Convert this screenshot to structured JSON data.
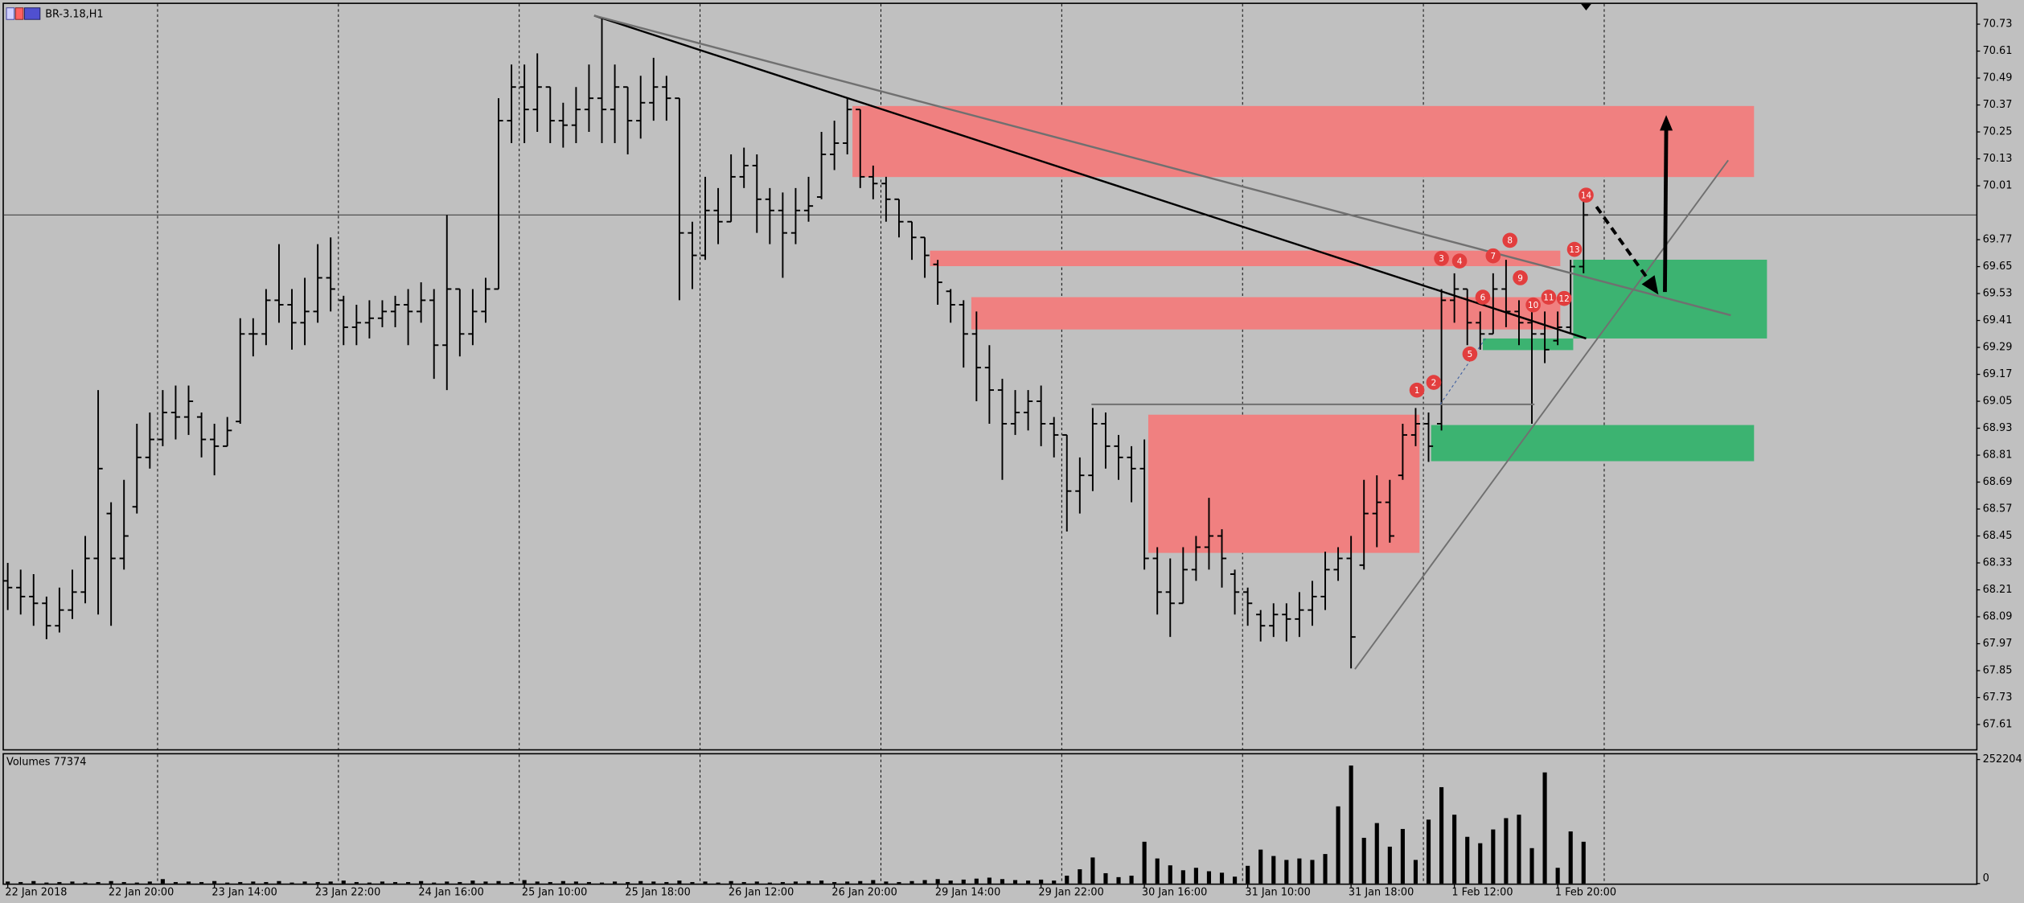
{
  "chart_data": [
    {
      "type": "ohlc",
      "title": "BR-3.18,H1",
      "color": "#000000",
      "categories": [
        "22 Jan 2018",
        null,
        null,
        null,
        null,
        null,
        null,
        null,
        "22 Jan 20:00",
        null,
        null,
        null,
        null,
        null,
        null,
        null,
        "23 Jan 14:00",
        null,
        null,
        null,
        null,
        null,
        null,
        null,
        "23 Jan 22:00",
        null,
        null,
        null,
        null,
        null,
        null,
        null,
        "24 Jan 16:00",
        null,
        null,
        null,
        null,
        null,
        null,
        null,
        "25 Jan 10:00",
        null,
        null,
        null,
        null,
        null,
        null,
        null,
        "25 Jan 18:00",
        null,
        null,
        null,
        null,
        null,
        null,
        null,
        "26 Jan 12:00",
        null,
        null,
        null,
        null,
        null,
        null,
        null,
        "26 Jan 20:00",
        null,
        null,
        null,
        null,
        null,
        null,
        null,
        "29 Jan 14:00",
        null,
        null,
        null,
        null,
        null,
        null,
        null,
        "29 Jan 22:00",
        null,
        null,
        null,
        null,
        null,
        null,
        null,
        "30 Jan 16:00",
        null,
        null,
        null,
        null,
        null,
        null,
        null,
        "31 Jan 10:00",
        null,
        null,
        null,
        null,
        null,
        null,
        null,
        "31 Jan 18:00",
        null,
        null,
        null,
        null,
        null,
        null,
        null,
        "1 Feb 12:00",
        null,
        null,
        null,
        null,
        null,
        null,
        null,
        "1 Feb 20:00",
        null,
        null
      ],
      "open": [
        68.25,
        68.22,
        68.18,
        68.15,
        68.05,
        68.12,
        68.2,
        68.35,
        68.55,
        68.35,
        68.58,
        68.8,
        68.88,
        69.0,
        68.98,
        68.98,
        68.88,
        68.85,
        68.96,
        69.35,
        69.35,
        69.5,
        69.48,
        69.4,
        69.45,
        69.6,
        69.5,
        69.38,
        69.4,
        69.42,
        69.45,
        69.48,
        69.45,
        69.5,
        69.3,
        69.55,
        69.35,
        69.45,
        69.55,
        70.3,
        70.45,
        70.35,
        70.45,
        70.3,
        70.28,
        70.35,
        70.4,
        70.35,
        70.45,
        70.3,
        70.38,
        70.45,
        70.4,
        69.8,
        69.7,
        69.9,
        69.85,
        70.05,
        70.1,
        69.95,
        69.9,
        69.8,
        69.9,
        69.96,
        70.15,
        70.2,
        70.35,
        70.05,
        70.02,
        69.95,
        69.85,
        69.78,
        69.66,
        69.54,
        69.48,
        69.35,
        69.2,
        69.1,
        68.95,
        69.0,
        69.05,
        68.95,
        68.9,
        68.65,
        68.72,
        68.95,
        68.85,
        68.8,
        68.75,
        68.35,
        68.2,
        68.15,
        68.3,
        68.4,
        68.45,
        68.28,
        68.2,
        68.1,
        68.05,
        68.1,
        68.08,
        68.12,
        68.18,
        68.3,
        68.35,
        68.32,
        68.55,
        68.6,
        68.72,
        68.9,
        68.95,
        68.95,
        69.5,
        69.55,
        69.4,
        69.35,
        69.55,
        69.45,
        69.4,
        69.35,
        69.32,
        69.38,
        69.65
      ],
      "high": [
        68.33,
        68.3,
        68.28,
        68.18,
        68.22,
        68.3,
        68.45,
        69.1,
        68.6,
        68.7,
        68.95,
        69.0,
        69.1,
        69.12,
        69.12,
        69.0,
        68.95,
        68.98,
        69.42,
        69.42,
        69.55,
        69.75,
        69.55,
        69.6,
        69.75,
        69.78,
        69.52,
        69.48,
        69.5,
        69.5,
        69.52,
        69.55,
        69.58,
        69.55,
        69.88,
        69.55,
        69.55,
        69.6,
        70.4,
        70.55,
        70.55,
        70.6,
        70.45,
        70.38,
        70.45,
        70.55,
        70.76,
        70.55,
        70.45,
        70.5,
        70.58,
        70.5,
        70.4,
        69.85,
        70.05,
        70.0,
        70.15,
        70.18,
        70.15,
        70.0,
        69.98,
        70.0,
        70.05,
        70.25,
        70.3,
        70.4,
        70.35,
        70.1,
        70.05,
        69.95,
        69.85,
        69.78,
        69.68,
        69.55,
        69.5,
        69.45,
        69.3,
        69.15,
        69.1,
        69.1,
        69.12,
        68.98,
        68.9,
        68.8,
        69.02,
        69.0,
        68.9,
        68.85,
        68.88,
        68.4,
        68.35,
        68.4,
        68.45,
        68.62,
        68.48,
        68.3,
        68.22,
        68.12,
        68.15,
        68.15,
        68.2,
        68.25,
        68.38,
        68.4,
        68.45,
        68.7,
        68.72,
        68.7,
        68.95,
        69.02,
        69.0,
        69.55,
        69.62,
        69.55,
        69.45,
        69.62,
        69.68,
        69.5,
        69.45,
        69.45,
        69.45,
        69.68,
        69.95
      ],
      "low": [
        68.12,
        68.1,
        68.05,
        67.99,
        68.02,
        68.08,
        68.15,
        68.1,
        68.05,
        68.3,
        68.55,
        68.75,
        68.85,
        68.88,
        68.9,
        68.8,
        68.72,
        68.85,
        68.95,
        69.25,
        69.3,
        69.4,
        69.28,
        69.3,
        69.4,
        69.45,
        69.3,
        69.3,
        69.33,
        69.38,
        69.38,
        69.3,
        69.4,
        69.15,
        69.1,
        69.25,
        69.3,
        69.4,
        69.55,
        70.2,
        70.2,
        70.25,
        70.2,
        70.18,
        70.2,
        70.25,
        70.2,
        70.2,
        70.15,
        70.22,
        70.3,
        70.3,
        69.5,
        69.55,
        69.68,
        69.75,
        69.85,
        70.0,
        69.8,
        69.75,
        69.6,
        69.75,
        69.85,
        69.95,
        70.08,
        70.15,
        70.0,
        69.95,
        69.85,
        69.78,
        69.68,
        69.6,
        69.48,
        69.4,
        69.2,
        69.05,
        68.95,
        68.7,
        68.9,
        68.92,
        68.85,
        68.8,
        68.47,
        68.55,
        68.65,
        68.75,
        68.7,
        68.6,
        68.3,
        68.1,
        68.0,
        68.15,
        68.25,
        68.3,
        68.22,
        68.1,
        68.05,
        67.98,
        68.0,
        67.98,
        68.0,
        68.05,
        68.12,
        68.25,
        67.86,
        68.3,
        68.4,
        68.42,
        68.7,
        68.85,
        68.78,
        68.92,
        69.4,
        69.3,
        69.28,
        69.35,
        69.38,
        69.3,
        68.95,
        69.22,
        69.3,
        69.35,
        69.62
      ],
      "close": [
        68.22,
        68.18,
        68.15,
        68.05,
        68.12,
        68.2,
        68.35,
        68.75,
        68.35,
        68.45,
        68.8,
        68.88,
        69.0,
        68.98,
        69.05,
        68.88,
        68.85,
        68.92,
        69.35,
        69.35,
        69.5,
        69.48,
        69.4,
        69.45,
        69.6,
        69.55,
        69.38,
        69.4,
        69.42,
        69.45,
        69.48,
        69.45,
        69.5,
        69.3,
        69.55,
        69.35,
        69.45,
        69.55,
        70.3,
        70.45,
        70.35,
        70.45,
        70.3,
        70.28,
        70.35,
        70.4,
        70.35,
        70.45,
        70.3,
        70.38,
        70.45,
        70.4,
        69.8,
        69.7,
        69.9,
        69.85,
        70.05,
        70.1,
        69.95,
        69.9,
        69.8,
        69.9,
        69.92,
        70.15,
        70.2,
        70.35,
        70.05,
        70.02,
        69.95,
        69.85,
        69.78,
        69.7,
        69.58,
        69.48,
        69.35,
        69.2,
        69.1,
        68.95,
        69.0,
        69.05,
        68.95,
        68.9,
        68.65,
        68.72,
        68.95,
        68.85,
        68.8,
        68.75,
        68.35,
        68.2,
        68.15,
        68.3,
        68.4,
        68.45,
        68.35,
        68.2,
        68.15,
        68.05,
        68.1,
        68.08,
        68.12,
        68.18,
        68.3,
        68.35,
        68.0,
        68.55,
        68.6,
        68.45,
        68.9,
        68.95,
        68.85,
        69.5,
        69.55,
        69.4,
        69.35,
        69.55,
        69.45,
        69.4,
        69.35,
        69.28,
        69.38,
        69.65,
        69.88
      ],
      "current_price": 69.88,
      "ylim": [
        67.5,
        70.82
      ],
      "yticks": [
        70.73,
        70.61,
        70.49,
        70.37,
        70.25,
        70.13,
        {
          "value": 70.01,
          "label": "70.01"
        },
        69.77,
        69.65,
        69.53,
        69.41,
        69.29,
        69.17,
        69.05,
        68.93,
        68.81,
        68.69,
        68.57,
        68.45,
        68.33,
        68.21,
        68.09,
        67.97,
        67.85,
        67.73,
        67.61
      ],
      "markers": [
        "1",
        "2",
        "3",
        "4",
        "5",
        "6",
        "7",
        "8",
        "9",
        "10",
        "11",
        "12",
        "13",
        "14"
      ]
    },
    {
      "type": "bar",
      "title": "Volumes 77374",
      "color": "#000000",
      "values": [
        4000,
        3000,
        5000,
        2000,
        3000,
        4000,
        2000,
        3000,
        5000,
        3000,
        2000,
        4000,
        9000,
        3000,
        4000,
        3000,
        5000,
        2000,
        3000,
        4000,
        3000,
        5000,
        2000,
        4000,
        3000,
        4000,
        6000,
        3000,
        2000,
        4000,
        3000,
        3000,
        5000,
        2000,
        4000,
        3000,
        6000,
        4000,
        5000,
        3000,
        7000,
        4000,
        3000,
        5000,
        4000,
        3000,
        2000,
        4000,
        3000,
        5000,
        4000,
        3000,
        6000,
        3000,
        4000,
        2000,
        5000,
        3000,
        4000,
        2000,
        3000,
        4000,
        5000,
        6000,
        3000,
        4000,
        5000,
        7000,
        4000,
        3000,
        5000,
        7000,
        9000,
        6000,
        8000,
        10000,
        12000,
        9000,
        7000,
        6000,
        8000,
        6000,
        16000,
        29000,
        53000,
        21000,
        13000,
        16000,
        85000,
        51000,
        37000,
        27000,
        32000,
        25000,
        22000,
        14000,
        36000,
        69000,
        56000,
        48000,
        51000,
        48000,
        60000,
        157000,
        240000,
        93000,
        123000,
        75000,
        111000,
        48000,
        130000,
        196000,
        140000,
        95000,
        82000,
        110000,
        133000,
        140000,
        72000,
        226000,
        32000,
        106000,
        85000
      ],
      "ylim": [
        0,
        252204
      ],
      "yticks": [
        252204,
        0
      ]
    }
  ]
}
